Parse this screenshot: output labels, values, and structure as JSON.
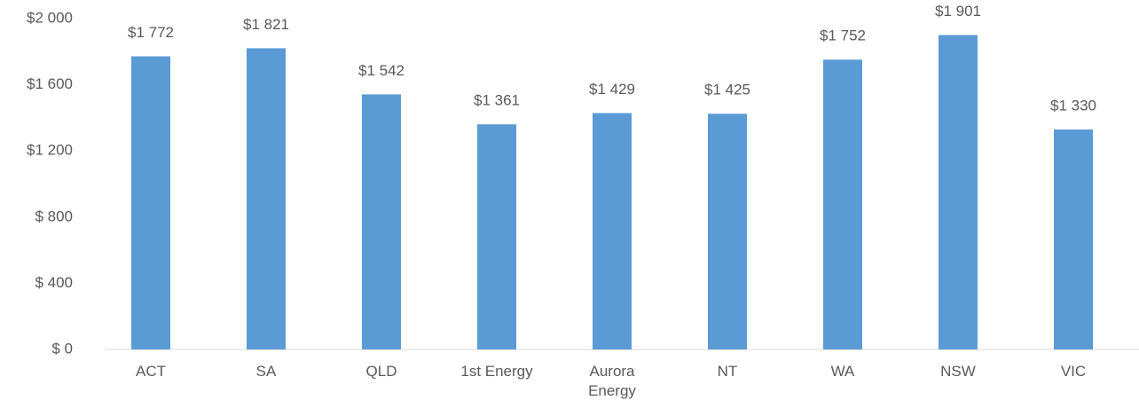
{
  "chart_data": {
    "type": "bar",
    "categories": [
      "ACT",
      "SA",
      "QLD",
      "1st Energy",
      "Aurora Energy",
      "NT",
      "WA",
      "NSW",
      "VIC"
    ],
    "values": [
      1772,
      1821,
      1542,
      1361,
      1429,
      1425,
      1752,
      1901,
      1330
    ],
    "value_labels": [
      "$1 772",
      "$1 821",
      "$1 542",
      "$1 361",
      "$1 429",
      "$1 425",
      "$1 752",
      "$1 901",
      "$1 330"
    ],
    "color": "#5b9bd5",
    "ylim": [
      0,
      2000
    ],
    "yticks": [
      {
        "value": 0,
        "label": "$ 0"
      },
      {
        "value": 400,
        "label": "$ 400"
      },
      {
        "value": 800,
        "label": "$ 800"
      },
      {
        "value": 1200,
        "label": "$1 200"
      },
      {
        "value": 1600,
        "label": "$1 600"
      },
      {
        "value": 2000,
        "label": "$2 000"
      }
    ],
    "grid": false
  }
}
